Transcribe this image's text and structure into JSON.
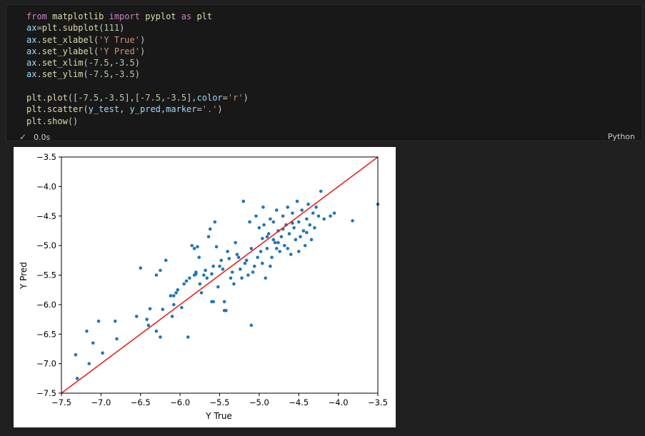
{
  "code_cell": {
    "lines": [
      [
        {
          "t": "from ",
          "c": "kw"
        },
        {
          "t": "matplotlib ",
          "c": "fn"
        },
        {
          "t": "import ",
          "c": "kw"
        },
        {
          "t": "pyplot ",
          "c": "fn"
        },
        {
          "t": "as ",
          "c": "kw"
        },
        {
          "t": "plt",
          "c": "fn"
        }
      ],
      [
        {
          "t": "ax",
          "c": "var"
        },
        {
          "t": "=",
          "c": ""
        },
        {
          "t": "plt",
          "c": "fn"
        },
        {
          "t": ".",
          "c": ""
        },
        {
          "t": "subplot",
          "c": "fn"
        },
        {
          "t": "(",
          "c": ""
        },
        {
          "t": "111",
          "c": "num"
        },
        {
          "t": ")",
          "c": ""
        }
      ],
      [
        {
          "t": "ax",
          "c": "var"
        },
        {
          "t": ".",
          "c": ""
        },
        {
          "t": "set_xlabel",
          "c": "fn"
        },
        {
          "t": "(",
          "c": ""
        },
        {
          "t": "'Y True'",
          "c": "str"
        },
        {
          "t": ")",
          "c": ""
        }
      ],
      [
        {
          "t": "ax",
          "c": "var"
        },
        {
          "t": ".",
          "c": ""
        },
        {
          "t": "set_ylabel",
          "c": "fn"
        },
        {
          "t": "(",
          "c": ""
        },
        {
          "t": "'Y Pred'",
          "c": "str"
        },
        {
          "t": ")",
          "c": ""
        }
      ],
      [
        {
          "t": "ax",
          "c": "var"
        },
        {
          "t": ".",
          "c": ""
        },
        {
          "t": "set_xlim",
          "c": "fn"
        },
        {
          "t": "(",
          "c": ""
        },
        {
          "t": "-7.5",
          "c": "num"
        },
        {
          "t": ",",
          "c": ""
        },
        {
          "t": "-3.5",
          "c": "num"
        },
        {
          "t": ")",
          "c": ""
        }
      ],
      [
        {
          "t": "ax",
          "c": "var"
        },
        {
          "t": ".",
          "c": ""
        },
        {
          "t": "set_ylim",
          "c": "fn"
        },
        {
          "t": "(",
          "c": ""
        },
        {
          "t": "-7.5",
          "c": "num"
        },
        {
          "t": ",",
          "c": ""
        },
        {
          "t": "-3.5",
          "c": "num"
        },
        {
          "t": ")",
          "c": ""
        }
      ],
      [],
      [
        {
          "t": "plt",
          "c": "fn"
        },
        {
          "t": ".",
          "c": ""
        },
        {
          "t": "plot",
          "c": "fn"
        },
        {
          "t": "([",
          "c": ""
        },
        {
          "t": "-7.5",
          "c": "num"
        },
        {
          "t": ",",
          "c": ""
        },
        {
          "t": "-3.5",
          "c": "num"
        },
        {
          "t": "],[",
          "c": ""
        },
        {
          "t": "-7.5",
          "c": "num"
        },
        {
          "t": ",",
          "c": ""
        },
        {
          "t": "-3.5",
          "c": "num"
        },
        {
          "t": "],",
          "c": ""
        },
        {
          "t": "color",
          "c": "var"
        },
        {
          "t": "=",
          "c": ""
        },
        {
          "t": "'r'",
          "c": "str"
        },
        {
          "t": ")",
          "c": ""
        }
      ],
      [
        {
          "t": "plt",
          "c": "fn"
        },
        {
          "t": ".",
          "c": ""
        },
        {
          "t": "scatter",
          "c": "fn"
        },
        {
          "t": "(",
          "c": ""
        },
        {
          "t": "y_test",
          "c": "var"
        },
        {
          "t": ", ",
          "c": ""
        },
        {
          "t": "y_pred",
          "c": "var"
        },
        {
          "t": ",",
          "c": ""
        },
        {
          "t": "marker",
          "c": "var"
        },
        {
          "t": "=",
          "c": ""
        },
        {
          "t": "'.'",
          "c": "str"
        },
        {
          "t": ")",
          "c": ""
        }
      ],
      [
        {
          "t": "plt",
          "c": "fn"
        },
        {
          "t": ".",
          "c": ""
        },
        {
          "t": "show",
          "c": "fn"
        },
        {
          "t": "()",
          "c": ""
        }
      ]
    ],
    "status_icon": "check-icon",
    "exec_time": "0.0s",
    "language": "Python"
  },
  "colors": {
    "keyword": "#c586c0",
    "variable": "#9cdcfe",
    "function": "#dcdcaa",
    "string": "#ce9178",
    "number": "#b5cea8",
    "scatter": "#1f77b4",
    "line": "#e8231f"
  },
  "chart_data": {
    "type": "scatter",
    "xlabel": "Y True",
    "ylabel": "Y Pred",
    "xlim": [
      -7.5,
      -3.5
    ],
    "ylim": [
      -7.5,
      -3.5
    ],
    "xticks": [
      "−7.5",
      "−7.0",
      "−6.5",
      "−6.0",
      "−5.5",
      "−5.0",
      "−4.5",
      "−4.0",
      "−3.5"
    ],
    "yticks": [
      "−3.5",
      "−4.0",
      "−4.5",
      "−5.0",
      "−5.5",
      "−6.0",
      "−6.5",
      "−7.0",
      "−7.5"
    ],
    "xtick_values": [
      -7.5,
      -7.0,
      -6.5,
      -6.0,
      -5.5,
      -5.0,
      -4.5,
      -4.0,
      -3.5
    ],
    "ytick_values": [
      -3.5,
      -4.0,
      -4.5,
      -5.0,
      -5.5,
      -6.0,
      -6.5,
      -7.0,
      -7.5
    ],
    "line": {
      "x": [
        -7.5,
        -3.5
      ],
      "y": [
        -7.5,
        -3.5
      ]
    },
    "points": [
      [
        -7.32,
        -6.85
      ],
      [
        -7.3,
        -7.25
      ],
      [
        -7.18,
        -6.45
      ],
      [
        -7.15,
        -7.0
      ],
      [
        -7.1,
        -6.65
      ],
      [
        -7.03,
        -6.28
      ],
      [
        -6.98,
        -6.82
      ],
      [
        -6.82,
        -6.28
      ],
      [
        -6.8,
        -6.58
      ],
      [
        -6.55,
        -6.2
      ],
      [
        -6.5,
        -5.38
      ],
      [
        -6.42,
        -6.25
      ],
      [
        -6.4,
        -6.35
      ],
      [
        -6.38,
        -6.07
      ],
      [
        -6.3,
        -6.45
      ],
      [
        -6.25,
        -6.55
      ],
      [
        -6.25,
        -5.42
      ],
      [
        -6.22,
        -6.08
      ],
      [
        -6.18,
        -5.25
      ],
      [
        -6.12,
        -5.85
      ],
      [
        -6.1,
        -6.2
      ],
      [
        -6.08,
        -6.0
      ],
      [
        -6.05,
        -5.8
      ],
      [
        -6.03,
        -5.75
      ],
      [
        -5.98,
        -6.05
      ],
      [
        -5.95,
        -5.65
      ],
      [
        -5.92,
        -5.6
      ],
      [
        -5.9,
        -6.55
      ],
      [
        -5.88,
        -5.55
      ],
      [
        -5.85,
        -5.0
      ],
      [
        -5.82,
        -5.5
      ],
      [
        -5.82,
        -5.05
      ],
      [
        -5.8,
        -5.48
      ],
      [
        -5.78,
        -5.02
      ],
      [
        -5.76,
        -5.2
      ],
      [
        -5.75,
        -5.65
      ],
      [
        -5.73,
        -5.8
      ],
      [
        -5.7,
        -5.5
      ],
      [
        -5.68,
        -5.42
      ],
      [
        -5.66,
        -5.55
      ],
      [
        -5.64,
        -4.85
      ],
      [
        -5.62,
        -4.72
      ],
      [
        -5.6,
        -5.48
      ],
      [
        -5.6,
        -5.95
      ],
      [
        -5.58,
        -5.35
      ],
      [
        -5.56,
        -4.6
      ],
      [
        -5.54,
        -5.02
      ],
      [
        -5.52,
        -5.7
      ],
      [
        -5.5,
        -5.35
      ],
      [
        -5.48,
        -5.25
      ],
      [
        -5.46,
        -5.4
      ],
      [
        -5.44,
        -5.95
      ],
      [
        -5.42,
        -6.1
      ],
      [
        -5.4,
        -5.1
      ],
      [
        -5.38,
        -5.22
      ],
      [
        -5.36,
        -5.55
      ],
      [
        -5.34,
        -5.45
      ],
      [
        -5.32,
        -5.65
      ],
      [
        -5.3,
        -4.95
      ],
      [
        -5.28,
        -5.15
      ],
      [
        -5.26,
        -5.2
      ],
      [
        -5.24,
        -5.4
      ],
      [
        -5.22,
        -5.55
      ],
      [
        -5.2,
        -4.25
      ],
      [
        -5.18,
        -5.3
      ],
      [
        -5.16,
        -5.25
      ],
      [
        -5.14,
        -5.5
      ],
      [
        -5.12,
        -4.6
      ],
      [
        -5.1,
        -5.05
      ],
      [
        -5.08,
        -5.45
      ],
      [
        -5.06,
        -5.35
      ],
      [
        -5.04,
        -4.5
      ],
      [
        -5.02,
        -5.2
      ],
      [
        -5.0,
        -4.7
      ],
      [
        -4.98,
        -5.1
      ],
      [
        -4.96,
        -5.3
      ],
      [
        -4.95,
        -4.35
      ],
      [
        -4.94,
        -4.65
      ],
      [
        -4.92,
        -5.55
      ],
      [
        -4.9,
        -5.05
      ],
      [
        -4.88,
        -4.8
      ],
      [
        -4.86,
        -4.55
      ],
      [
        -4.84,
        -5.2
      ],
      [
        -4.82,
        -4.6
      ],
      [
        -4.8,
        -4.95
      ],
      [
        -4.78,
        -4.4
      ],
      [
        -4.76,
        -4.75
      ],
      [
        -4.74,
        -5.1
      ],
      [
        -4.72,
        -4.85
      ],
      [
        -4.7,
        -4.5
      ],
      [
        -4.68,
        -5.0
      ],
      [
        -4.66,
        -4.65
      ],
      [
        -4.64,
        -4.35
      ],
      [
        -4.62,
        -4.8
      ],
      [
        -4.6,
        -5.15
      ],
      [
        -4.58,
        -4.45
      ],
      [
        -4.56,
        -4.7
      ],
      [
        -4.54,
        -4.9
      ],
      [
        -4.52,
        -4.25
      ],
      [
        -4.5,
        -4.6
      ],
      [
        -4.48,
        -4.85
      ],
      [
        -4.46,
        -4.4
      ],
      [
        -4.44,
        -4.75
      ],
      [
        -4.42,
        -5.0
      ],
      [
        -4.4,
        -4.55
      ],
      [
        -4.38,
        -4.3
      ],
      [
        -4.36,
        -4.65
      ],
      [
        -4.34,
        -4.9
      ],
      [
        -4.32,
        -4.45
      ],
      [
        -4.3,
        -4.7
      ],
      [
        -4.28,
        -4.35
      ],
      [
        -4.25,
        -4.5
      ],
      [
        -4.22,
        -4.08
      ],
      [
        -4.18,
        -4.55
      ],
      [
        -4.1,
        -4.5
      ],
      [
        -4.05,
        -4.45
      ],
      [
        -3.82,
        -4.58
      ],
      [
        -3.5,
        -4.3
      ],
      [
        -6.3,
        -5.5
      ],
      [
        -5.58,
        -5.95
      ],
      [
        -5.8,
        -5.45
      ],
      [
        -6.08,
        -5.85
      ],
      [
        -4.64,
        -5.05
      ],
      [
        -4.76,
        -4.95
      ],
      [
        -5.44,
        -6.1
      ],
      [
        -4.86,
        -5.35
      ],
      [
        -4.5,
        -5.1
      ],
      [
        -5.1,
        -6.35
      ],
      [
        -4.9,
        -4.85
      ],
      [
        -4.7,
        -4.72
      ],
      [
        -4.4,
        -4.78
      ],
      [
        -4.58,
        -4.62
      ],
      [
        -4.82,
        -4.9
      ],
      [
        -4.96,
        -4.88
      ],
      [
        -4.78,
        -5.05
      ]
    ]
  }
}
